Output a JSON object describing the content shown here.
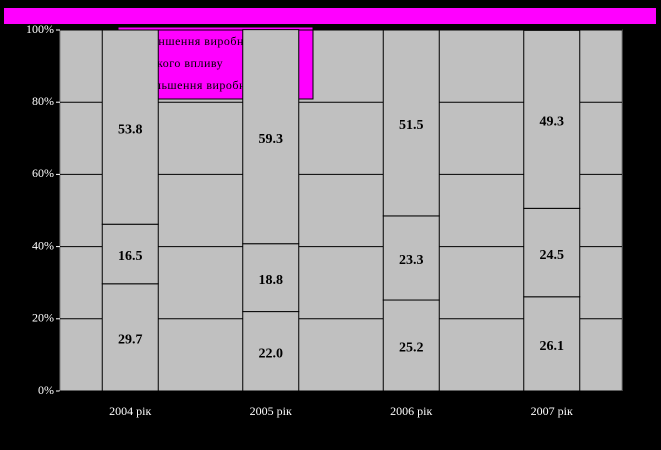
{
  "chart_data": {
    "type": "bar",
    "stacked": true,
    "categories": [
      "2004 рік",
      "2005 рік",
      "2006 рік",
      "2007 рік"
    ],
    "series": [
      {
        "name": "Збільшення виробництва",
        "color": "#c0c0c0",
        "values": [
          29.7,
          22.0,
          25.2,
          26.1
        ]
      },
      {
        "name": "Ніякого впливу",
        "color": "#c0c0c0",
        "values": [
          16.5,
          18.8,
          23.3,
          24.5
        ]
      },
      {
        "name": "Зменшення виробництва",
        "color": "#c0c0c0",
        "values": [
          53.8,
          59.3,
          51.5,
          49.3
        ]
      }
    ],
    "value_labels": [
      [
        "29.7",
        "22.0",
        "25.2",
        "26.1"
      ],
      [
        "16.5",
        "18.8",
        "23.3",
        "24.5"
      ],
      [
        "53.8",
        "59.3",
        "51.5",
        "49.3"
      ]
    ],
    "ylim": [
      0,
      100
    ],
    "yticks": [
      {
        "value": 0,
        "label": "0%"
      },
      {
        "value": 20,
        "label": "20%"
      },
      {
        "value": 40,
        "label": "40%"
      },
      {
        "value": 60,
        "label": "60%"
      },
      {
        "value": 80,
        "label": "80%"
      },
      {
        "value": 100,
        "label": "100%"
      }
    ],
    "grid": true
  }
}
